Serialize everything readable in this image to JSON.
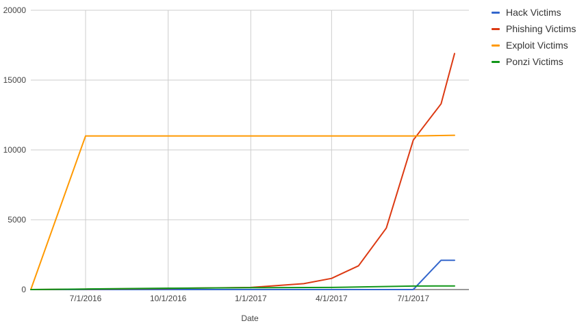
{
  "chart_data": {
    "type": "line",
    "xlabel": "Date",
    "ylabel": "",
    "ylim": [
      0,
      20000
    ],
    "y_ticks": [
      "0",
      "5000",
      "10000",
      "15000",
      "20000"
    ],
    "x_ticks": [
      "7/1/2016",
      "10/1/2016",
      "1/1/2017",
      "4/1/2017",
      "7/1/2017"
    ],
    "x_tick_dates": [
      "2016-07-01",
      "2016-10-01",
      "2017-01-01",
      "2017-04-01",
      "2017-07-01"
    ],
    "x_range": [
      "2016-05-01",
      "2017-09-01"
    ],
    "grid": true,
    "legend_position": "right",
    "series": [
      {
        "name": "Hack Victims",
        "color": "#3366cc",
        "points": [
          [
            "2016-05-01",
            0
          ],
          [
            "2016-07-01",
            0
          ],
          [
            "2017-06-01",
            0
          ],
          [
            "2017-07-01",
            0
          ],
          [
            "2017-08-01",
            2100
          ],
          [
            "2017-08-16",
            2100
          ]
        ]
      },
      {
        "name": "Phishing Victims",
        "color": "#dc3912",
        "points": [
          [
            "2016-05-01",
            0
          ],
          [
            "2016-07-01",
            30
          ],
          [
            "2016-10-01",
            80
          ],
          [
            "2017-01-01",
            150
          ],
          [
            "2017-03-01",
            420
          ],
          [
            "2017-04-01",
            800
          ],
          [
            "2017-05-01",
            1700
          ],
          [
            "2017-06-01",
            4400
          ],
          [
            "2017-07-01",
            10700
          ],
          [
            "2017-08-01",
            13300
          ],
          [
            "2017-08-16",
            16900
          ]
        ]
      },
      {
        "name": "Exploit Victims",
        "color": "#ff9900",
        "points": [
          [
            "2016-05-01",
            0
          ],
          [
            "2016-07-01",
            11000
          ],
          [
            "2017-07-01",
            11000
          ],
          [
            "2017-08-16",
            11050
          ]
        ]
      },
      {
        "name": "Ponzi Victims",
        "color": "#109618",
        "points": [
          [
            "2016-05-01",
            0
          ],
          [
            "2016-07-01",
            40
          ],
          [
            "2016-10-01",
            100
          ],
          [
            "2017-01-01",
            130
          ],
          [
            "2017-04-01",
            150
          ],
          [
            "2017-07-01",
            250
          ],
          [
            "2017-08-16",
            260
          ]
        ]
      }
    ]
  }
}
